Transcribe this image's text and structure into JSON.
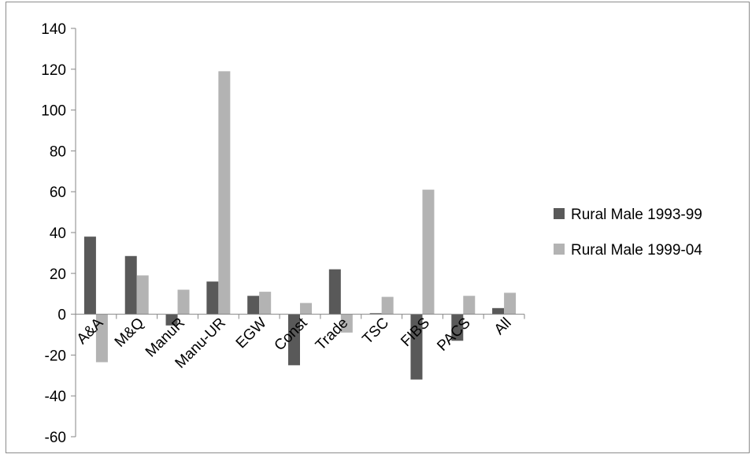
{
  "chart_data": {
    "type": "bar",
    "title": "",
    "xlabel": "",
    "ylabel": "",
    "categories": [
      "A&A",
      "M&Q",
      "ManuR",
      "Manu-UR",
      "EGW",
      "Const",
      "Trade",
      "TSC",
      "FIBS",
      "PACS",
      "All"
    ],
    "series": [
      {
        "name": "Rural Male 1993-99",
        "color": "#595959",
        "values": [
          38,
          28.5,
          -5.5,
          16,
          9,
          -25,
          22,
          0.5,
          -32,
          -13,
          3
        ]
      },
      {
        "name": "Rural Male 1999-04",
        "color": "#b3b3b3",
        "values": [
          -23.5,
          19,
          12,
          119,
          11,
          5.5,
          -9,
          8.5,
          61,
          9,
          10.5
        ]
      }
    ],
    "ylim": [
      -60,
      140
    ],
    "yticks": [
      140,
      120,
      100,
      80,
      60,
      40,
      20,
      0,
      -20,
      -40,
      -60
    ],
    "grid": false,
    "legend_position": "right"
  }
}
